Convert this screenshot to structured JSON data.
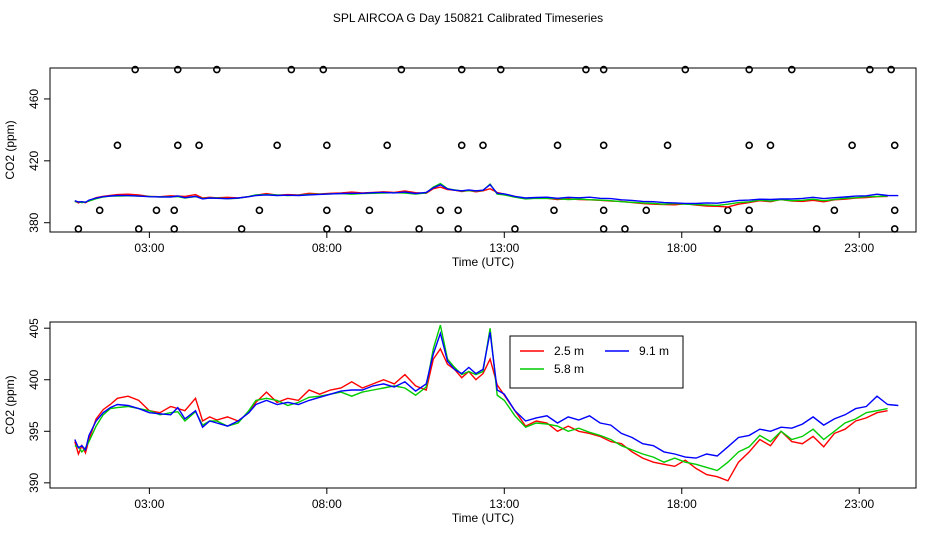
{
  "title": "SPL AIRCOA G  Day 150821  Calibrated Timeseries",
  "chart_data": [
    {
      "type": "scatter+line",
      "xlabel": "Time (UTC)",
      "ylabel": "CO2 (ppm)",
      "xlim": [
        0.2,
        24.6
      ],
      "ylim": [
        374,
        480
      ],
      "xticks": [
        3,
        8,
        13,
        18,
        23
      ],
      "xtick_labels": [
        "03:00",
        "08:00",
        "13:00",
        "18:00",
        "23:00"
      ],
      "yticks": [
        380,
        420,
        460
      ],
      "ytick_labels": [
        "380",
        "420",
        "460"
      ],
      "circles": {
        "y_levels": [
          376,
          388,
          430,
          479
        ],
        "x_at_376": [
          1.0,
          2.7,
          3.7,
          5.6,
          8.0,
          8.6,
          10.6,
          11.7,
          13.3,
          15.8,
          16.4,
          19.0,
          19.9,
          21.8,
          24.0
        ],
        "x_at_388": [
          1.6,
          3.2,
          3.7,
          6.1,
          8.0,
          9.2,
          11.2,
          11.7,
          14.4,
          15.8,
          17.0,
          19.3,
          19.9,
          22.3,
          24.0
        ],
        "x_at_430": [
          2.1,
          3.8,
          4.4,
          6.6,
          8.0,
          9.7,
          11.8,
          12.4,
          14.5,
          15.8,
          17.6,
          19.9,
          20.5,
          22.8,
          24.0
        ],
        "x_at_479": [
          2.6,
          3.8,
          4.9,
          7.0,
          7.9,
          10.1,
          11.8,
          12.9,
          15.3,
          15.8,
          18.1,
          19.9,
          21.1,
          23.3,
          23.9
        ]
      },
      "series_note": "lines at ~393-404 ppm (same series as lower panel)"
    },
    {
      "type": "line",
      "xlabel": "Time (UTC)",
      "ylabel": "CO2 (ppm)",
      "xlim": [
        0.2,
        24.6
      ],
      "ylim": [
        389.5,
        405.6
      ],
      "xticks": [
        3,
        8,
        13,
        18,
        23
      ],
      "xtick_labels": [
        "03:00",
        "08:00",
        "13:00",
        "18:00",
        "23:00"
      ],
      "yticks": [
        390,
        395,
        400,
        405
      ],
      "ytick_labels": [
        "390",
        "395",
        "400",
        "405"
      ],
      "legend": [
        {
          "name": "2.5 m",
          "color": "#ff0000"
        },
        {
          "name": "5.8 m",
          "color": "#00cc00"
        },
        {
          "name": "9.1 m",
          "color": "#0000ff"
        }
      ],
      "series": [
        {
          "name": "2.5 m",
          "color": "#ff0000",
          "x": [
            0.9,
            1.0,
            1.1,
            1.2,
            1.3,
            1.5,
            1.7,
            1.9,
            2.1,
            2.4,
            2.7,
            3.0,
            3.3,
            3.6,
            3.8,
            4.0,
            4.3,
            4.5,
            4.7,
            4.9,
            5.2,
            5.5,
            5.8,
            6.0,
            6.3,
            6.6,
            6.9,
            7.2,
            7.5,
            7.8,
            8.1,
            8.4,
            8.7,
            9.0,
            9.3,
            9.6,
            9.9,
            10.2,
            10.5,
            10.8,
            11.0,
            11.2,
            11.4,
            11.6,
            11.8,
            12.0,
            12.2,
            12.4,
            12.6,
            12.8,
            13.0,
            13.3,
            13.6,
            13.9,
            14.2,
            14.5,
            14.8,
            15.1,
            15.4,
            15.7,
            16.0,
            16.3,
            16.6,
            16.9,
            17.2,
            17.5,
            17.8,
            18.1,
            18.4,
            18.7,
            19.0,
            19.3,
            19.6,
            19.9,
            20.2,
            20.5,
            20.8,
            21.1,
            21.4,
            21.7,
            22.0,
            22.3,
            22.6,
            22.9,
            23.2,
            23.5,
            23.8
          ],
          "values": [
            394.0,
            392.8,
            393.6,
            392.9,
            394.2,
            396.2,
            397.1,
            397.6,
            398.2,
            398.4,
            398.0,
            397.0,
            396.8,
            397.4,
            397.2,
            397.0,
            398.2,
            396.0,
            396.4,
            396.1,
            396.4,
            396.0,
            396.8,
            397.8,
            398.8,
            397.8,
            398.2,
            398.0,
            399.0,
            398.6,
            399.0,
            399.2,
            399.8,
            399.2,
            399.6,
            400.0,
            399.6,
            400.5,
            399.4,
            399.0,
            402.0,
            403.0,
            401.5,
            401.0,
            400.2,
            400.8,
            400.0,
            400.6,
            402.0,
            399.5,
            398.5,
            397.0,
            395.5,
            396.0,
            395.8,
            395.0,
            395.5,
            395.0,
            394.8,
            394.5,
            394.0,
            393.8,
            393.0,
            392.4,
            392.0,
            391.8,
            391.6,
            392.2,
            391.4,
            390.8,
            390.6,
            390.2,
            392.0,
            393.0,
            394.2,
            393.6,
            395.0,
            394.0,
            393.8,
            394.5,
            393.5,
            394.8,
            395.2,
            396.0,
            396.3,
            396.8,
            397.0
          ]
        },
        {
          "name": "5.8 m",
          "color": "#00cc00",
          "x": [
            0.9,
            1.0,
            1.1,
            1.2,
            1.3,
            1.5,
            1.7,
            1.9,
            2.1,
            2.4,
            2.7,
            3.0,
            3.3,
            3.6,
            3.8,
            4.0,
            4.3,
            4.5,
            4.7,
            4.9,
            5.2,
            5.5,
            5.8,
            6.0,
            6.3,
            6.6,
            6.9,
            7.2,
            7.5,
            7.8,
            8.1,
            8.4,
            8.7,
            9.0,
            9.3,
            9.6,
            9.9,
            10.2,
            10.5,
            10.8,
            11.0,
            11.2,
            11.4,
            11.6,
            11.8,
            12.0,
            12.2,
            12.4,
            12.6,
            12.8,
            13.0,
            13.3,
            13.6,
            13.9,
            14.2,
            14.5,
            14.8,
            15.1,
            15.4,
            15.7,
            16.0,
            16.3,
            16.6,
            16.9,
            17.2,
            17.5,
            17.8,
            18.1,
            18.4,
            18.7,
            19.0,
            19.3,
            19.6,
            19.9,
            20.2,
            20.5,
            20.8,
            21.1,
            21.4,
            21.7,
            22.0,
            22.3,
            22.6,
            22.9,
            23.2,
            23.5,
            23.8
          ],
          "values": [
            393.6,
            393.5,
            393.0,
            393.4,
            394.0,
            395.5,
            396.6,
            397.2,
            397.3,
            397.4,
            397.2,
            397.0,
            396.6,
            396.8,
            396.9,
            396.0,
            396.9,
            395.6,
            396.0,
            396.0,
            395.5,
            395.8,
            397.0,
            398.0,
            398.2,
            398.0,
            397.5,
            397.8,
            398.3,
            398.4,
            398.6,
            398.8,
            398.4,
            398.8,
            399.0,
            399.2,
            399.4,
            399.2,
            398.5,
            399.3,
            403.0,
            405.3,
            402.0,
            401.2,
            400.5,
            400.8,
            400.5,
            400.8,
            405.0,
            398.5,
            398.0,
            396.5,
            395.4,
            395.8,
            395.7,
            395.5,
            395.0,
            395.3,
            394.9,
            394.6,
            394.2,
            393.6,
            393.2,
            392.8,
            392.5,
            392.0,
            392.4,
            392.0,
            391.8,
            391.5,
            391.2,
            392.0,
            393.0,
            393.5,
            394.6,
            394.0,
            395.0,
            394.2,
            394.5,
            395.2,
            394.2,
            395.0,
            395.8,
            396.2,
            396.8,
            397.0,
            397.2
          ]
        },
        {
          "name": "9.1 m",
          "color": "#0000ff",
          "x": [
            0.9,
            1.0,
            1.1,
            1.2,
            1.3,
            1.5,
            1.7,
            1.9,
            2.1,
            2.4,
            2.7,
            3.0,
            3.3,
            3.6,
            3.8,
            4.0,
            4.3,
            4.5,
            4.7,
            4.9,
            5.2,
            5.5,
            5.8,
            6.0,
            6.3,
            6.6,
            6.9,
            7.2,
            7.5,
            7.8,
            8.1,
            8.4,
            8.7,
            9.0,
            9.3,
            9.6,
            9.9,
            10.2,
            10.5,
            10.8,
            11.0,
            11.2,
            11.4,
            11.6,
            11.8,
            12.0,
            12.2,
            12.4,
            12.6,
            12.8,
            13.0,
            13.3,
            13.6,
            13.9,
            14.2,
            14.5,
            14.8,
            15.1,
            15.4,
            15.7,
            16.0,
            16.3,
            16.6,
            16.9,
            17.2,
            17.5,
            17.8,
            18.1,
            18.4,
            18.7,
            19.0,
            19.3,
            19.6,
            19.9,
            20.2,
            20.5,
            20.8,
            21.1,
            21.4,
            21.7,
            22.0,
            22.3,
            22.6,
            22.9,
            23.2,
            23.5,
            23.8,
            24.1
          ],
          "values": [
            394.2,
            393.4,
            393.6,
            393.2,
            394.6,
            396.0,
            396.8,
            397.3,
            397.6,
            397.5,
            397.2,
            396.8,
            396.7,
            396.6,
            397.3,
            396.2,
            397.0,
            395.4,
            396.0,
            395.8,
            395.5,
            396.0,
            396.8,
            397.6,
            398.0,
            397.6,
            397.8,
            397.6,
            398.0,
            398.3,
            398.6,
            398.9,
            399.0,
            399.0,
            399.4,
            399.6,
            399.3,
            399.8,
            398.9,
            399.6,
            402.5,
            404.5,
            401.8,
            401.0,
            400.6,
            401.2,
            400.6,
            401.0,
            404.6,
            399.0,
            398.6,
            397.0,
            396.0,
            396.3,
            396.5,
            395.8,
            396.4,
            396.1,
            396.5,
            395.8,
            395.6,
            394.8,
            394.4,
            393.8,
            393.6,
            393.0,
            392.8,
            392.5,
            392.4,
            392.8,
            392.6,
            393.5,
            394.4,
            394.6,
            395.2,
            395.0,
            395.4,
            395.3,
            395.7,
            396.4,
            395.6,
            396.2,
            396.6,
            397.2,
            397.4,
            398.4,
            397.6,
            397.5
          ]
        }
      ]
    }
  ]
}
